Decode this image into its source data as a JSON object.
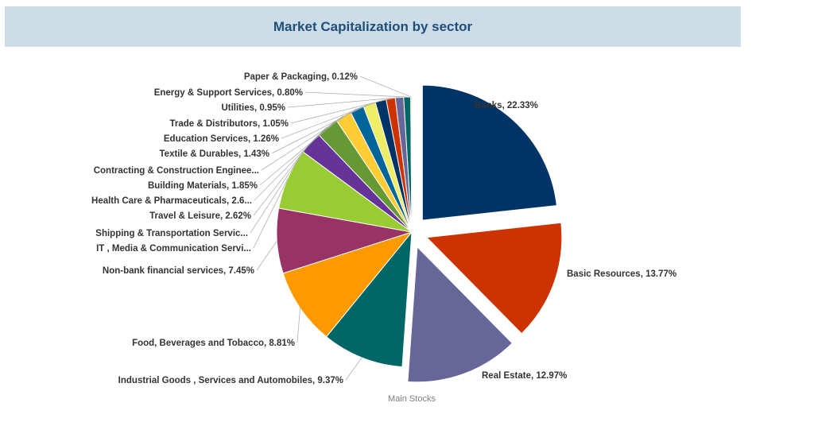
{
  "chart_data": {
    "type": "pie",
    "title": "Market Capitalization by sector",
    "subtitle": "Main Stocks",
    "slices": [
      {
        "label": "Banks, 22.33%",
        "value": 22.33,
        "color": "#003366",
        "exploded": true
      },
      {
        "label": "Basic Resources, 13.77%",
        "value": 13.77,
        "color": "#cc3300",
        "exploded": true
      },
      {
        "label": "Real Estate, 12.97%",
        "value": 12.97,
        "color": "#666699",
        "exploded": true
      },
      {
        "label": "Industrial Goods , Services and Automobiles, 9.37%",
        "value": 9.37,
        "color": "#006666",
        "exploded": false
      },
      {
        "label": "Food, Beverages and Tobacco, 8.81%",
        "value": 8.81,
        "color": "#ff9900",
        "exploded": false
      },
      {
        "label": "Non-bank financial services, 7.45%",
        "value": 7.45,
        "color": "#993366",
        "exploded": false
      },
      {
        "label": "IT , Media & Communication Servi...",
        "value": 7.0,
        "color": "#99cc33",
        "exploded": false
      },
      {
        "label": "Shipping & Transportation Servic...",
        "value": 0.0,
        "color": "#6699cc",
        "exploded": false
      },
      {
        "label": "Travel & Leisure, 2.62%",
        "value": 2.62,
        "color": "#663399",
        "exploded": false
      },
      {
        "label": "Health Care & Pharmaceuticals, 2.6...",
        "value": 2.6,
        "color": "#669933",
        "exploded": false
      },
      {
        "label": "Building Materials, 1.85%",
        "value": 1.85,
        "color": "#ffcc33",
        "exploded": false
      },
      {
        "label": "Contracting & Construction Enginee...",
        "value": 1.6,
        "color": "#006699",
        "exploded": false
      },
      {
        "label": "Textile & Durables, 1.43%",
        "value": 1.43,
        "color": "#eeee66",
        "exploded": false
      },
      {
        "label": "Education Services, 1.26%",
        "value": 1.26,
        "color": "#003366",
        "exploded": false
      },
      {
        "label": "Trade & Distributors, 1.05%",
        "value": 1.05,
        "color": "#cc3300",
        "exploded": false
      },
      {
        "label": "Utilities, 0.95%",
        "value": 0.95,
        "color": "#666699",
        "exploded": false
      },
      {
        "label": "Energy & Support Services, 0.80%",
        "value": 0.8,
        "color": "#006666",
        "exploded": false
      },
      {
        "label": "Paper & Packaging, 0.12%",
        "value": 0.12,
        "color": "#ff9900",
        "exploded": false
      }
    ]
  }
}
